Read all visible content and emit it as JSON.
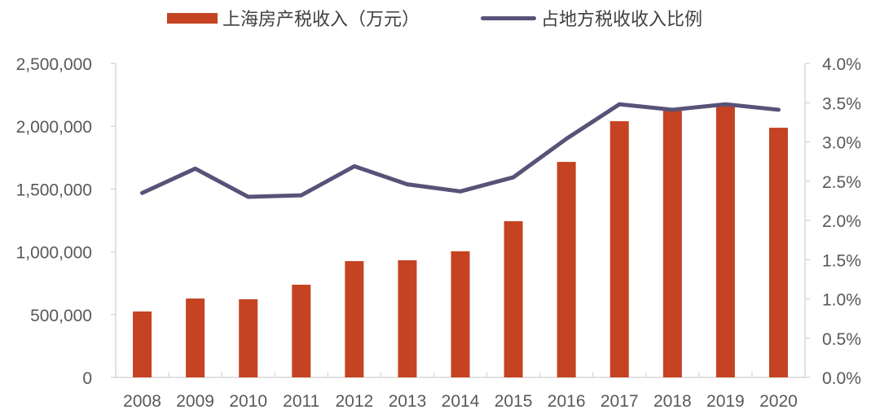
{
  "chart_data": {
    "type": "bar+line",
    "title": "",
    "categories": [
      "2008",
      "2009",
      "2010",
      "2011",
      "2012",
      "2013",
      "2014",
      "2015",
      "2016",
      "2017",
      "2018",
      "2019",
      "2020"
    ],
    "series": [
      {
        "name": "上海房产税收入（万元）",
        "type": "bar",
        "axis": "left",
        "color": "#C54322",
        "values": [
          525000,
          628000,
          622000,
          738000,
          926000,
          933000,
          1004000,
          1244000,
          1716000,
          2040000,
          2131000,
          2176000,
          1988000
        ]
      },
      {
        "name": "占地方税收收入比例",
        "type": "line",
        "axis": "right",
        "color": "#575378",
        "values": [
          2.35,
          2.66,
          2.3,
          2.32,
          2.69,
          2.46,
          2.37,
          2.55,
          3.04,
          3.48,
          3.41,
          3.48,
          3.41
        ]
      }
    ],
    "left_axis": {
      "ylim": [
        0,
        2500000
      ],
      "ticks": [
        "0",
        "500,000",
        "1,000,000",
        "1,500,000",
        "2,000,000",
        "2,500,000"
      ]
    },
    "right_axis": {
      "ylim": [
        0,
        4.0
      ],
      "ticks": [
        "0.0%",
        "0.5%",
        "1.0%",
        "1.5%",
        "2.0%",
        "2.5%",
        "3.0%",
        "3.5%",
        "4.0%"
      ]
    },
    "xlabel": "",
    "ylabel": "",
    "grid": false,
    "legend_position": "top"
  },
  "legend": {
    "bar_label": "上海房产税收入（万元）",
    "line_label": "占地方税收收入比例"
  }
}
